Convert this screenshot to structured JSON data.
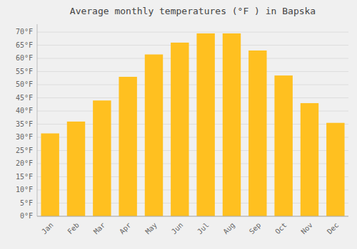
{
  "chart_data": {
    "type": "bar",
    "title": "Average monthly temperatures (°F ) in Bapska",
    "categories": [
      "Jan",
      "Feb",
      "Mar",
      "Apr",
      "May",
      "Jun",
      "Jul",
      "Aug",
      "Sep",
      "Oct",
      "Nov",
      "Dec"
    ],
    "values": [
      31.5,
      36,
      44,
      53,
      61.5,
      66,
      69.5,
      69.5,
      63,
      53.5,
      43,
      35.5
    ],
    "color": "#FFC020",
    "ylim": [
      0,
      73
    ],
    "yticks": [
      {
        "value": 0,
        "label": "0°F"
      },
      {
        "value": 5,
        "label": "5°F"
      },
      {
        "value": 10,
        "label": "10°F"
      },
      {
        "value": 15,
        "label": "15°F"
      },
      {
        "value": 20,
        "label": "20°F"
      },
      {
        "value": 25,
        "label": "25°F"
      },
      {
        "value": 30,
        "label": "30°F"
      },
      {
        "value": 35,
        "label": "35°F"
      },
      {
        "value": 40,
        "label": "40°F"
      },
      {
        "value": 45,
        "label": "45°F"
      },
      {
        "value": 50,
        "label": "50°F"
      },
      {
        "value": 55,
        "label": "55°F"
      },
      {
        "value": 60,
        "label": "60°F"
      },
      {
        "value": 65,
        "label": "65°F"
      },
      {
        "value": 70,
        "label": "70°F"
      }
    ],
    "grid": true
  }
}
